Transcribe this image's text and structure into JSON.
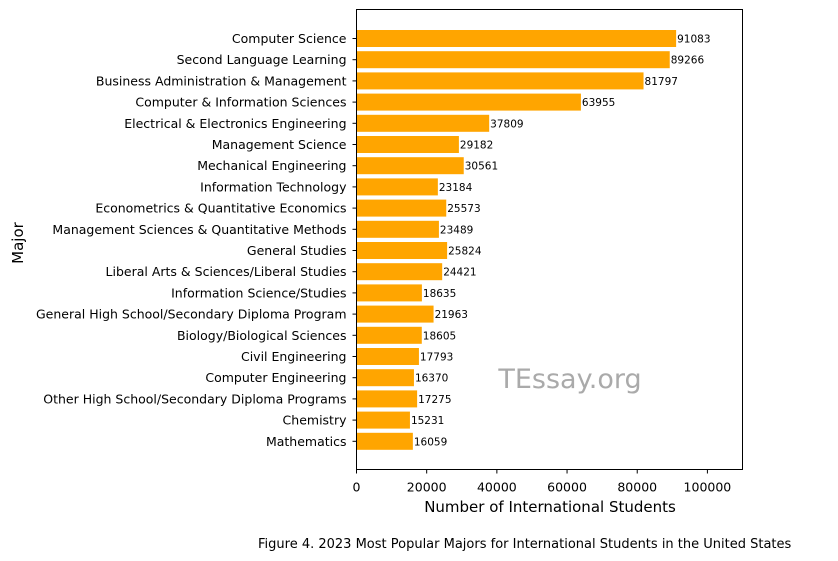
{
  "chart_data": {
    "type": "bar",
    "orientation": "horizontal",
    "categories": [
      "Computer Science",
      "Second Language Learning",
      "Business Administration & Management",
      "Computer & Information Sciences",
      "Electrical & Electronics Engineering",
      "Management Science",
      "Mechanical Engineering",
      "Information Technology",
      "Econometrics & Quantitative Economics",
      "Management Sciences & Quantitative Methods",
      "General Studies",
      "Liberal Arts & Sciences/Liberal Studies",
      "Information Science/Studies",
      "General High School/Secondary Diploma Program",
      "Biology/Biological Sciences",
      "Civil Engineering",
      "Computer Engineering",
      "Other High School/Secondary Diploma Programs",
      "Chemistry",
      "Mathematics"
    ],
    "values": [
      91083,
      89266,
      81797,
      63955,
      37809,
      29182,
      30561,
      23184,
      25573,
      23489,
      25824,
      24421,
      18635,
      21963,
      18605,
      17793,
      16370,
      17275,
      15231,
      16059
    ],
    "xlabel": "Number of International Students",
    "ylabel": "Major",
    "xlim": [
      0,
      110000
    ],
    "xticks": [
      0,
      20000,
      40000,
      60000,
      80000,
      100000
    ],
    "bar_color": "#FFA500",
    "grid": false,
    "data_labels": true
  },
  "watermark": "TEssay.org",
  "caption": "Figure 4. 2023 Most Popular Majors for International Students in the United States"
}
